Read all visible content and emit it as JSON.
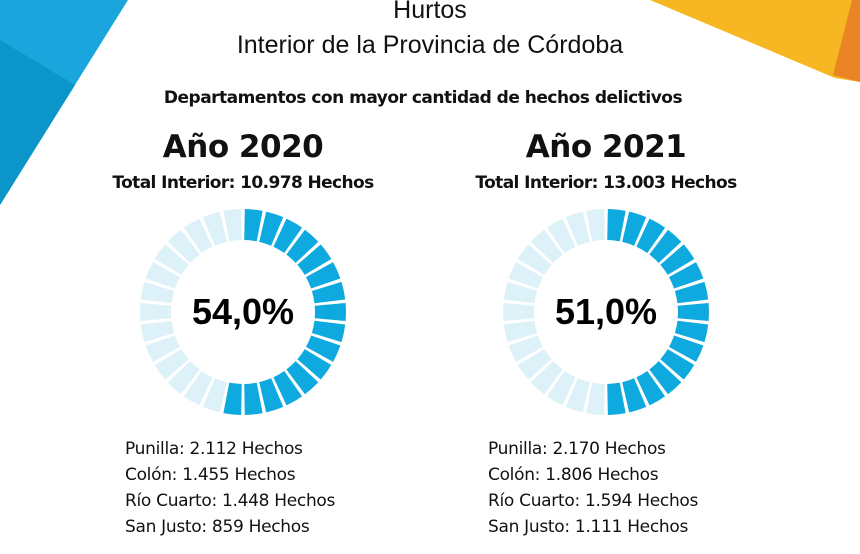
{
  "header": {
    "title_line1": "Hurtos",
    "title_line2": "Interior de la Provincia de Córdoba",
    "subtitle": "Departamentos con mayor cantidad de hechos delictivos"
  },
  "colors": {
    "filled_segment": "#0EA9DE",
    "empty_segment": "#DDF1F8",
    "bg_blue_light": "#1AA6DC",
    "bg_blue_dark": "#0B95C8",
    "bg_yellow": "#F6B723",
    "bg_orange": "#EB8425"
  },
  "chart_data": [
    {
      "type": "pie",
      "subtype": "segmented-donut",
      "title": "Año 2020",
      "subtitle": "Total Interior: 10.978 Hechos",
      "value_percent": 54.0,
      "center_label": "54,0%",
      "departments": [
        {
          "label": "Punilla: 2.112 Hechos",
          "name": "Punilla",
          "value": 2112
        },
        {
          "label": "Colón: 1.455 Hechos",
          "name": "Colón",
          "value": 1455
        },
        {
          "label": "Río Cuarto: 1.448 Hechos",
          "name": "Río Cuarto",
          "value": 1448
        },
        {
          "label": "San Justo: 859 Hechos",
          "name": "San Justo",
          "value": 859
        }
      ]
    },
    {
      "type": "pie",
      "subtype": "segmented-donut",
      "title": "Año 2021",
      "subtitle": "Total Interior: 13.003 Hechos",
      "value_percent": 51.0,
      "center_label": "51,0%",
      "departments": [
        {
          "label": "Punilla: 2.170 Hechos",
          "name": "Punilla",
          "value": 2170
        },
        {
          "label": "Colón: 1.806 Hechos",
          "name": "Colón",
          "value": 1806
        },
        {
          "label": "Río Cuarto: 1.594 Hechos",
          "name": "Río Cuarto",
          "value": 1594
        },
        {
          "label": "San Justo: 1.111 Hechos",
          "name": "San Justo",
          "value": 1111
        }
      ]
    }
  ]
}
